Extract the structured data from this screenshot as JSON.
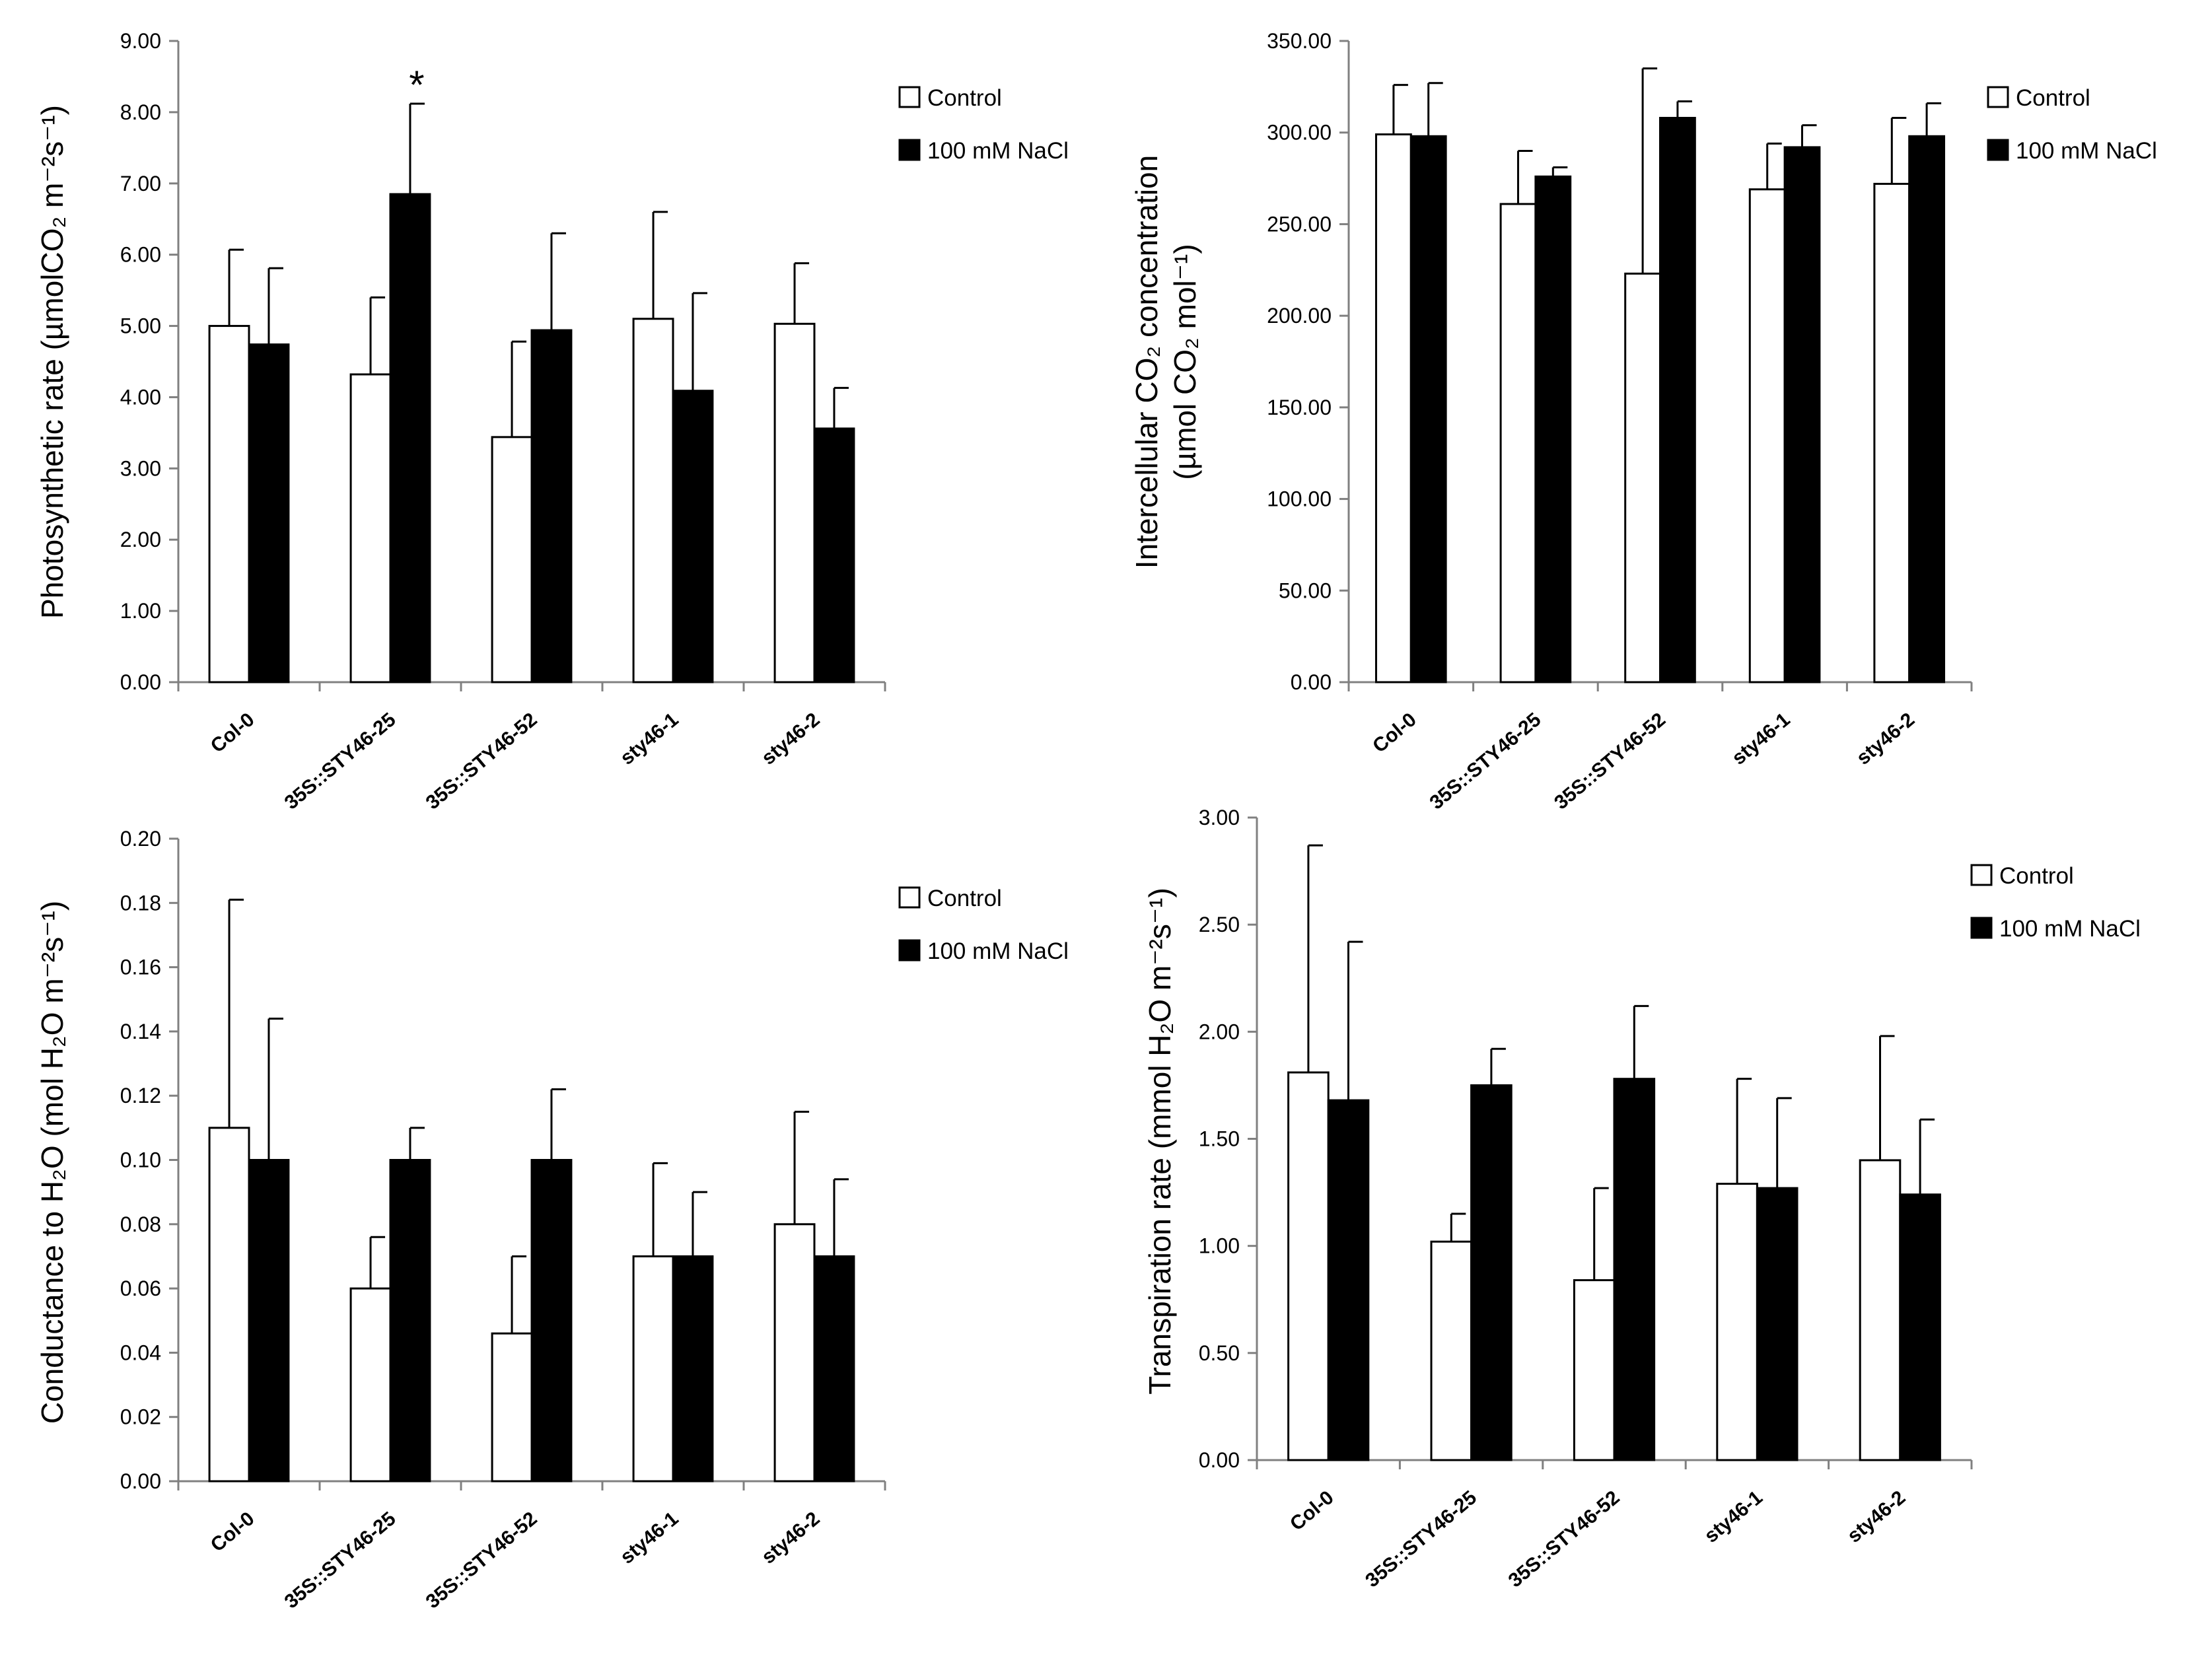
{
  "legend": {
    "control_label": "Control",
    "nacl_label": "100 mM NaCl",
    "control_color": "#ffffff",
    "nacl_color": "#000000"
  },
  "chart_data": [
    {
      "type": "bar",
      "name": "photosynthetic-rate",
      "categories": [
        "Col-0",
        "35S::STY46-25",
        "35S::STY46-52",
        "sty46-1",
        "sty46-2"
      ],
      "ylabel": "Photosynthetic rate (µmolCO₂ m⁻²s⁻¹)",
      "ylim": [
        0,
        9
      ],
      "ytick_step": 1,
      "ytick_decimals": 2,
      "series": [
        {
          "name": "Control",
          "values": [
            5.0,
            4.32,
            3.44,
            5.1,
            5.03
          ],
          "errors": [
            1.07,
            1.08,
            1.34,
            1.5,
            0.85
          ]
        },
        {
          "name": "100 mM NaCl",
          "values": [
            4.74,
            6.85,
            4.94,
            4.09,
            3.56
          ],
          "errors": [
            1.07,
            1.27,
            1.36,
            1.37,
            0.57
          ]
        }
      ],
      "annotations": [
        {
          "text": "*",
          "category": 1,
          "series": 1
        }
      ]
    },
    {
      "type": "bar",
      "name": "intercellular-co2",
      "categories": [
        "Col-0",
        "35S::STY46-25",
        "35S::STY46-52",
        "sty46-1",
        "sty46-2"
      ],
      "ylabel_line1": "Intercellular CO₂ concentration",
      "ylabel_line2": "(µmol CO₂ mol⁻¹)",
      "ylim": [
        0,
        350
      ],
      "ytick_step": 50,
      "ytick_decimals": 2,
      "series": [
        {
          "name": "Control",
          "values": [
            299,
            261,
            223,
            269,
            272
          ],
          "errors": [
            27,
            29,
            112,
            25,
            36
          ]
        },
        {
          "name": "100 mM NaCl",
          "values": [
            298,
            276,
            308,
            292,
            298
          ],
          "errors": [
            29,
            5,
            9,
            12,
            18
          ]
        }
      ],
      "annotations": []
    },
    {
      "type": "bar",
      "name": "conductance",
      "categories": [
        "Col-0",
        "35S::STY46-25",
        "35S::STY46-52",
        "sty46-1",
        "sty46-2"
      ],
      "ylabel": "Conductance to H₂O (mol H₂O m⁻²s⁻¹)",
      "ylim": [
        0,
        0.2
      ],
      "ytick_step": 0.02,
      "ytick_decimals": 2,
      "series": [
        {
          "name": "Control",
          "values": [
            0.11,
            0.06,
            0.046,
            0.07,
            0.08
          ],
          "errors": [
            0.071,
            0.016,
            0.024,
            0.029,
            0.035
          ]
        },
        {
          "name": "100 mM NaCl",
          "values": [
            0.1,
            0.1,
            0.1,
            0.07,
            0.07
          ],
          "errors": [
            0.044,
            0.01,
            0.022,
            0.02,
            0.024
          ]
        }
      ],
      "annotations": []
    },
    {
      "type": "bar",
      "name": "transpiration-rate",
      "categories": [
        "Col-0",
        "35S::STY46-25",
        "35S::STY46-52",
        "sty46-1",
        "sty46-2"
      ],
      "ylabel": "Transpiration rate (mmol H₂O m⁻²s⁻¹)",
      "ylim": [
        0,
        3
      ],
      "ytick_step": 0.5,
      "ytick_decimals": 2,
      "series": [
        {
          "name": "Control",
          "values": [
            1.81,
            1.02,
            0.84,
            1.29,
            1.4
          ],
          "errors": [
            1.06,
            0.13,
            0.43,
            0.49,
            0.58
          ]
        },
        {
          "name": "100 mM NaCl",
          "values": [
            1.68,
            1.75,
            1.78,
            1.27,
            1.24
          ],
          "errors": [
            0.74,
            0.17,
            0.34,
            0.42,
            0.35
          ]
        }
      ],
      "annotations": []
    }
  ]
}
